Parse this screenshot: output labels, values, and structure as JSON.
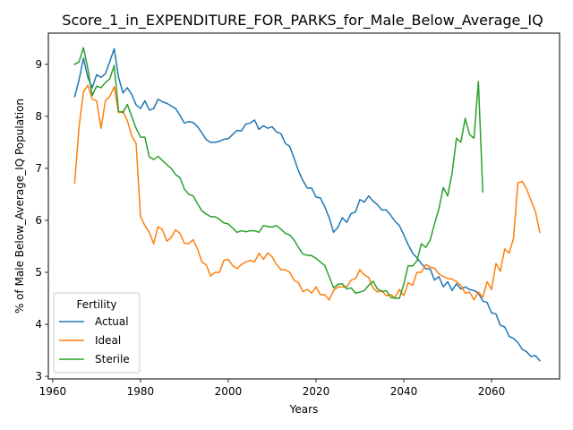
{
  "chart_data": {
    "type": "line",
    "title": "Score_1_in_EXPENDITURE_FOR_PARKS_for_Male_Below_Average_IQ",
    "xlabel": "Years",
    "ylabel": "% of Male Below_Average_IQ Population",
    "xlim": [
      1959,
      2075.5
    ],
    "ylim": [
      2.95,
      9.6
    ],
    "xticks": [
      1960,
      1980,
      2000,
      2020,
      2040,
      2060
    ],
    "yticks": [
      3,
      4,
      5,
      6,
      7,
      8,
      9
    ],
    "grid": false,
    "legend": {
      "title": "Fertility",
      "placement": "lower-left"
    },
    "series": [
      {
        "name": "Actual",
        "color": "#1f77b4",
        "points": [
          [
            1965,
            8.38
          ],
          [
            1966,
            8.7
          ],
          [
            1967,
            9.12
          ],
          [
            1968,
            8.75
          ],
          [
            1969,
            8.55
          ],
          [
            1970,
            8.8
          ],
          [
            1971,
            8.75
          ],
          [
            1972,
            8.82
          ],
          [
            1973,
            9.05
          ],
          [
            1974,
            9.3
          ],
          [
            1975,
            8.75
          ],
          [
            1976,
            8.45
          ],
          [
            1977,
            8.55
          ],
          [
            1978,
            8.42
          ],
          [
            1979,
            8.22
          ],
          [
            1980,
            8.15
          ],
          [
            1981,
            8.3
          ],
          [
            1982,
            8.12
          ],
          [
            1983,
            8.15
          ],
          [
            1984,
            8.33
          ],
          [
            1985,
            8.28
          ],
          [
            1986,
            8.25
          ],
          [
            1987,
            8.2
          ],
          [
            1988,
            8.15
          ],
          [
            1989,
            8.02
          ],
          [
            1990,
            7.87
          ],
          [
            1991,
            7.9
          ],
          [
            1992,
            7.88
          ],
          [
            1993,
            7.8
          ],
          [
            1994,
            7.68
          ],
          [
            1995,
            7.55
          ],
          [
            1996,
            7.5
          ],
          [
            1997,
            7.5
          ],
          [
            1998,
            7.52
          ],
          [
            1999,
            7.56
          ],
          [
            2000,
            7.57
          ],
          [
            2001,
            7.65
          ],
          [
            2002,
            7.73
          ],
          [
            2003,
            7.72
          ],
          [
            2004,
            7.85
          ],
          [
            2005,
            7.87
          ],
          [
            2006,
            7.93
          ],
          [
            2007,
            7.75
          ],
          [
            2008,
            7.82
          ],
          [
            2009,
            7.77
          ],
          [
            2010,
            7.8
          ],
          [
            2011,
            7.7
          ],
          [
            2012,
            7.67
          ],
          [
            2013,
            7.48
          ],
          [
            2014,
            7.42
          ],
          [
            2015,
            7.2
          ],
          [
            2016,
            6.95
          ],
          [
            2017,
            6.77
          ],
          [
            2018,
            6.62
          ],
          [
            2019,
            6.62
          ],
          [
            2020,
            6.45
          ],
          [
            2021,
            6.43
          ],
          [
            2022,
            6.26
          ],
          [
            2023,
            6.05
          ],
          [
            2024,
            5.77
          ],
          [
            2025,
            5.87
          ],
          [
            2026,
            6.05
          ],
          [
            2027,
            5.96
          ],
          [
            2028,
            6.13
          ],
          [
            2029,
            6.16
          ],
          [
            2030,
            6.4
          ],
          [
            2031,
            6.35
          ],
          [
            2032,
            6.47
          ],
          [
            2033,
            6.37
          ],
          [
            2034,
            6.3
          ],
          [
            2035,
            6.2
          ],
          [
            2036,
            6.2
          ],
          [
            2037,
            6.1
          ],
          [
            2038,
            5.98
          ],
          [
            2039,
            5.9
          ],
          [
            2040,
            5.72
          ],
          [
            2041,
            5.53
          ],
          [
            2042,
            5.37
          ],
          [
            2043,
            5.28
          ],
          [
            2044,
            5.17
          ],
          [
            2045,
            5.07
          ],
          [
            2046,
            5.07
          ],
          [
            2047,
            4.85
          ],
          [
            2048,
            4.92
          ],
          [
            2049,
            4.72
          ],
          [
            2050,
            4.82
          ],
          [
            2051,
            4.65
          ],
          [
            2052,
            4.78
          ],
          [
            2053,
            4.68
          ],
          [
            2054,
            4.72
          ],
          [
            2055,
            4.67
          ],
          [
            2056,
            4.65
          ],
          [
            2057,
            4.6
          ],
          [
            2058,
            4.45
          ],
          [
            2059,
            4.42
          ],
          [
            2060,
            4.22
          ],
          [
            2061,
            4.2
          ],
          [
            2062,
            3.98
          ],
          [
            2063,
            3.95
          ],
          [
            2064,
            3.77
          ],
          [
            2065,
            3.73
          ],
          [
            2066,
            3.65
          ],
          [
            2067,
            3.52
          ],
          [
            2068,
            3.47
          ],
          [
            2069,
            3.38
          ],
          [
            2070,
            3.4
          ],
          [
            2071,
            3.3
          ]
        ]
      },
      {
        "name": "Ideal",
        "color": "#ff7f0e",
        "points": [
          [
            1965,
            6.72
          ],
          [
            1966,
            7.8
          ],
          [
            1967,
            8.47
          ],
          [
            1968,
            8.6
          ],
          [
            1969,
            8.33
          ],
          [
            1970,
            8.3
          ],
          [
            1971,
            7.77
          ],
          [
            1972,
            8.3
          ],
          [
            1973,
            8.38
          ],
          [
            1974,
            8.57
          ],
          [
            1975,
            8.07
          ],
          [
            1976,
            8.1
          ],
          [
            1977,
            7.92
          ],
          [
            1978,
            7.62
          ],
          [
            1979,
            7.48
          ],
          [
            1980,
            6.07
          ],
          [
            1981,
            5.9
          ],
          [
            1982,
            5.77
          ],
          [
            1983,
            5.55
          ],
          [
            1984,
            5.88
          ],
          [
            1985,
            5.82
          ],
          [
            1986,
            5.6
          ],
          [
            1987,
            5.67
          ],
          [
            1988,
            5.82
          ],
          [
            1989,
            5.75
          ],
          [
            1990,
            5.56
          ],
          [
            1991,
            5.55
          ],
          [
            1992,
            5.63
          ],
          [
            1993,
            5.45
          ],
          [
            1994,
            5.2
          ],
          [
            1995,
            5.14
          ],
          [
            1996,
            4.93
          ],
          [
            1997,
            5.0
          ],
          [
            1998,
            5.0
          ],
          [
            1999,
            5.23
          ],
          [
            2000,
            5.25
          ],
          [
            2001,
            5.13
          ],
          [
            2002,
            5.07
          ],
          [
            2003,
            5.15
          ],
          [
            2004,
            5.2
          ],
          [
            2005,
            5.23
          ],
          [
            2006,
            5.2
          ],
          [
            2007,
            5.37
          ],
          [
            2008,
            5.25
          ],
          [
            2009,
            5.37
          ],
          [
            2010,
            5.3
          ],
          [
            2011,
            5.15
          ],
          [
            2012,
            5.05
          ],
          [
            2013,
            5.05
          ],
          [
            2014,
            5.0
          ],
          [
            2015,
            4.85
          ],
          [
            2016,
            4.8
          ],
          [
            2017,
            4.63
          ],
          [
            2018,
            4.67
          ],
          [
            2019,
            4.6
          ],
          [
            2020,
            4.72
          ],
          [
            2021,
            4.57
          ],
          [
            2022,
            4.57
          ],
          [
            2023,
            4.47
          ],
          [
            2024,
            4.65
          ],
          [
            2025,
            4.72
          ],
          [
            2026,
            4.72
          ],
          [
            2027,
            4.72
          ],
          [
            2028,
            4.85
          ],
          [
            2029,
            4.88
          ],
          [
            2030,
            5.05
          ],
          [
            2031,
            4.95
          ],
          [
            2032,
            4.9
          ],
          [
            2033,
            4.7
          ],
          [
            2034,
            4.62
          ],
          [
            2035,
            4.65
          ],
          [
            2036,
            4.55
          ],
          [
            2037,
            4.57
          ],
          [
            2038,
            4.52
          ],
          [
            2039,
            4.67
          ],
          [
            2040,
            4.55
          ],
          [
            2041,
            4.8
          ],
          [
            2042,
            4.75
          ],
          [
            2043,
            5.0
          ],
          [
            2044,
            5.0
          ],
          [
            2045,
            5.15
          ],
          [
            2046,
            5.1
          ],
          [
            2047,
            5.08
          ],
          [
            2048,
            4.97
          ],
          [
            2049,
            4.92
          ],
          [
            2050,
            4.88
          ],
          [
            2051,
            4.87
          ],
          [
            2052,
            4.82
          ],
          [
            2053,
            4.75
          ],
          [
            2054,
            4.6
          ],
          [
            2055,
            4.62
          ],
          [
            2056,
            4.47
          ],
          [
            2057,
            4.62
          ],
          [
            2058,
            4.52
          ],
          [
            2059,
            4.82
          ],
          [
            2060,
            4.67
          ],
          [
            2061,
            5.17
          ],
          [
            2062,
            5.02
          ],
          [
            2063,
            5.45
          ],
          [
            2064,
            5.37
          ],
          [
            2065,
            5.65
          ],
          [
            2066,
            6.72
          ],
          [
            2067,
            6.75
          ],
          [
            2068,
            6.6
          ],
          [
            2069,
            6.38
          ],
          [
            2070,
            6.17
          ],
          [
            2071,
            5.77
          ]
        ]
      },
      {
        "name": "Sterile",
        "color": "#2ca02c",
        "points": [
          [
            1965,
            9.0
          ],
          [
            1966,
            9.05
          ],
          [
            1967,
            9.32
          ],
          [
            1968,
            8.92
          ],
          [
            1969,
            8.4
          ],
          [
            1970,
            8.58
          ],
          [
            1971,
            8.55
          ],
          [
            1972,
            8.65
          ],
          [
            1973,
            8.72
          ],
          [
            1974,
            8.98
          ],
          [
            1975,
            8.1
          ],
          [
            1976,
            8.07
          ],
          [
            1977,
            8.23
          ],
          [
            1978,
            8.0
          ],
          [
            1979,
            7.77
          ],
          [
            1980,
            7.6
          ],
          [
            1981,
            7.6
          ],
          [
            1982,
            7.22
          ],
          [
            1983,
            7.17
          ],
          [
            1984,
            7.23
          ],
          [
            1985,
            7.15
          ],
          [
            1986,
            7.07
          ],
          [
            1987,
            7.0
          ],
          [
            1988,
            6.88
          ],
          [
            1989,
            6.82
          ],
          [
            1990,
            6.6
          ],
          [
            1991,
            6.5
          ],
          [
            1992,
            6.47
          ],
          [
            1993,
            6.32
          ],
          [
            1994,
            6.18
          ],
          [
            1995,
            6.12
          ],
          [
            1996,
            6.07
          ],
          [
            1997,
            6.07
          ],
          [
            1998,
            6.02
          ],
          [
            1999,
            5.95
          ],
          [
            2000,
            5.93
          ],
          [
            2001,
            5.85
          ],
          [
            2002,
            5.77
          ],
          [
            2003,
            5.8
          ],
          [
            2004,
            5.78
          ],
          [
            2005,
            5.8
          ],
          [
            2006,
            5.8
          ],
          [
            2007,
            5.77
          ],
          [
            2008,
            5.9
          ],
          [
            2009,
            5.88
          ],
          [
            2010,
            5.87
          ],
          [
            2011,
            5.9
          ],
          [
            2012,
            5.83
          ],
          [
            2013,
            5.75
          ],
          [
            2014,
            5.72
          ],
          [
            2015,
            5.62
          ],
          [
            2016,
            5.48
          ],
          [
            2017,
            5.35
          ],
          [
            2018,
            5.33
          ],
          [
            2019,
            5.32
          ],
          [
            2020,
            5.27
          ],
          [
            2021,
            5.2
          ],
          [
            2022,
            5.13
          ],
          [
            2023,
            4.92
          ],
          [
            2024,
            4.7
          ],
          [
            2025,
            4.77
          ],
          [
            2026,
            4.78
          ],
          [
            2027,
            4.68
          ],
          [
            2028,
            4.7
          ],
          [
            2029,
            4.6
          ],
          [
            2030,
            4.62
          ],
          [
            2031,
            4.65
          ],
          [
            2032,
            4.75
          ],
          [
            2033,
            4.83
          ],
          [
            2034,
            4.68
          ],
          [
            2035,
            4.63
          ],
          [
            2036,
            4.65
          ],
          [
            2037,
            4.52
          ],
          [
            2038,
            4.5
          ],
          [
            2039,
            4.5
          ],
          [
            2040,
            4.77
          ],
          [
            2041,
            5.13
          ],
          [
            2042,
            5.12
          ],
          [
            2043,
            5.22
          ],
          [
            2044,
            5.55
          ],
          [
            2045,
            5.48
          ],
          [
            2046,
            5.62
          ],
          [
            2047,
            5.93
          ],
          [
            2048,
            6.22
          ],
          [
            2049,
            6.63
          ],
          [
            2050,
            6.47
          ],
          [
            2051,
            6.9
          ],
          [
            2052,
            7.58
          ],
          [
            2053,
            7.5
          ],
          [
            2054,
            7.96
          ],
          [
            2055,
            7.65
          ],
          [
            2056,
            7.58
          ],
          [
            2057,
            8.67
          ],
          [
            2058,
            6.55
          ]
        ]
      }
    ]
  }
}
